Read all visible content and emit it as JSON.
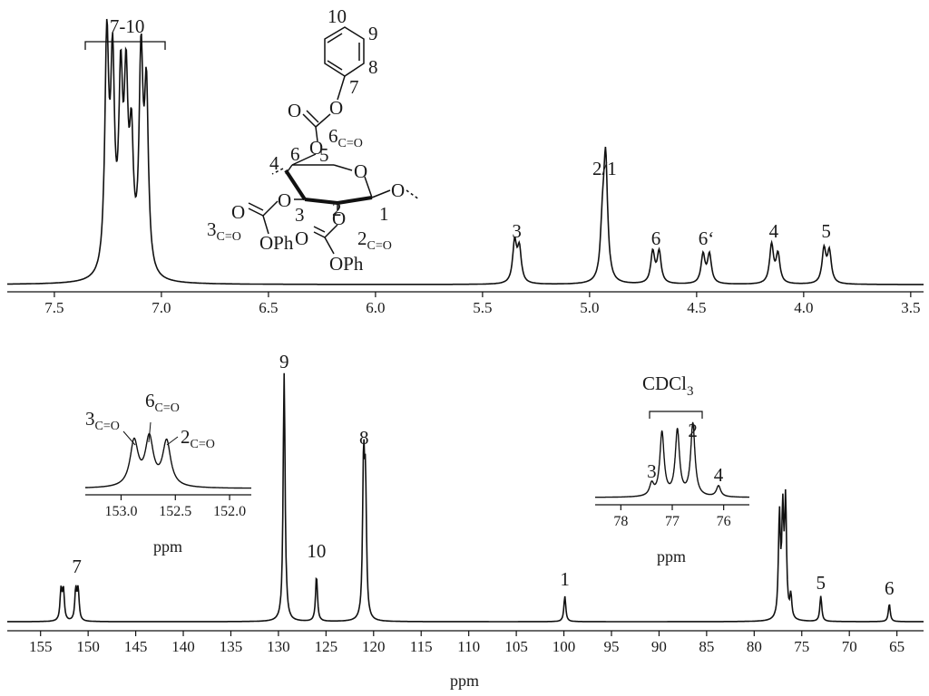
{
  "chart_data": [
    {
      "type": "line",
      "id": "h1-spectrum",
      "title": "",
      "xlabel": "",
      "ylabel": "",
      "x_reversed": true,
      "xlim": [
        7.72,
        3.44
      ],
      "xticks": [
        "7.5",
        "7.0",
        "6.5",
        "6.0",
        "5.5",
        "5.0",
        "4.5",
        "4.0",
        "3.5"
      ],
      "xtick_values": [
        7.5,
        7.0,
        6.5,
        6.0,
        5.5,
        5.0,
        4.5,
        4.0,
        3.5
      ],
      "grid": false,
      "peaks": [
        {
          "ppm": 7.255,
          "height": 0.95
        },
        {
          "ppm": 7.228,
          "height": 0.82
        },
        {
          "ppm": 7.19,
          "height": 0.74
        },
        {
          "ppm": 7.165,
          "height": 0.72
        },
        {
          "ppm": 7.14,
          "height": 0.5
        },
        {
          "ppm": 7.095,
          "height": 0.87
        },
        {
          "ppm": 7.07,
          "height": 0.73
        },
        {
          "ppm": 5.35,
          "height": 0.17
        },
        {
          "ppm": 5.328,
          "height": 0.14
        },
        {
          "ppm": 4.925,
          "height": 0.5
        },
        {
          "ppm": 4.94,
          "height": 0.2
        },
        {
          "ppm": 4.705,
          "height": 0.13
        },
        {
          "ppm": 4.675,
          "height": 0.13
        },
        {
          "ppm": 4.47,
          "height": 0.12
        },
        {
          "ppm": 4.44,
          "height": 0.12
        },
        {
          "ppm": 4.15,
          "height": 0.16
        },
        {
          "ppm": 4.12,
          "height": 0.12
        },
        {
          "ppm": 3.905,
          "height": 0.14
        },
        {
          "ppm": 3.88,
          "height": 0.13
        }
      ],
      "labels": [
        {
          "text": "7-10",
          "ppm": 7.16
        },
        {
          "text": "3",
          "ppm": 5.34
        },
        {
          "text": "2/1",
          "ppm": 4.93
        },
        {
          "text": "6",
          "ppm": 4.69
        },
        {
          "text": "6‘",
          "ppm": 4.455
        },
        {
          "text": "4",
          "ppm": 4.14
        },
        {
          "text": "5",
          "ppm": 3.895
        }
      ]
    },
    {
      "type": "line",
      "id": "c13-spectrum",
      "title": "",
      "xlabel": "ppm",
      "ylabel": "",
      "x_reversed": true,
      "xlim": [
        158.5,
        62.2
      ],
      "xticks": [
        "155",
        "150",
        "145",
        "140",
        "135",
        "130",
        "125",
        "120",
        "115",
        "110",
        "105",
        "100",
        "95",
        "90",
        "85",
        "80",
        "75",
        "70",
        "65"
      ],
      "xtick_values": [
        155,
        150,
        145,
        140,
        135,
        130,
        125,
        120,
        115,
        110,
        105,
        100,
        95,
        90,
        85,
        80,
        75,
        70,
        65
      ],
      "grid": false,
      "peaks": [
        {
          "ppm": 152.85,
          "height": 0.12
        },
        {
          "ppm": 152.6,
          "height": 0.12
        },
        {
          "ppm": 151.3,
          "height": 0.12
        },
        {
          "ppm": 151.05,
          "height": 0.12
        },
        {
          "ppm": 129.4,
          "height": 0.98
        },
        {
          "ppm": 126.0,
          "height": 0.18
        },
        {
          "ppm": 121.05,
          "height": 0.6
        },
        {
          "ppm": 120.85,
          "height": 0.49
        },
        {
          "ppm": 99.9,
          "height": 0.1
        },
        {
          "ppm": 77.35,
          "height": 0.4
        },
        {
          "ppm": 77.0,
          "height": 0.4
        },
        {
          "ppm": 76.7,
          "height": 0.45
        },
        {
          "ppm": 76.15,
          "height": 0.09
        },
        {
          "ppm": 73.0,
          "height": 0.1
        },
        {
          "ppm": 65.8,
          "height": 0.07
        }
      ],
      "labels": [
        {
          "text": "7",
          "ppm": 151.2
        },
        {
          "text": "9",
          "ppm": 129.4
        },
        {
          "text": "10",
          "ppm": 126.0
        },
        {
          "text": "8",
          "ppm": 121.0
        },
        {
          "text": "1",
          "ppm": 99.9
        },
        {
          "text": "5",
          "ppm": 73.0
        },
        {
          "text": "6",
          "ppm": 65.8
        }
      ]
    },
    {
      "type": "line",
      "id": "carbonyl-inset",
      "xlabel": "ppm",
      "x_reversed": true,
      "xlim": [
        153.33,
        151.8
      ],
      "xticks": [
        "153.0",
        "152.5",
        "152.0"
      ],
      "xtick_values": [
        153.0,
        152.5,
        152.0
      ],
      "peaks": [
        {
          "ppm": 152.88,
          "height": 0.55
        },
        {
          "ppm": 152.74,
          "height": 0.58
        },
        {
          "ppm": 152.58,
          "height": 0.55
        }
      ],
      "labels": [
        {
          "text": "3",
          "sub": "C=O"
        },
        {
          "text": "6",
          "sub": "C=O"
        },
        {
          "text": "2",
          "sub": "C=O"
        }
      ]
    },
    {
      "type": "line",
      "id": "cdcl3-inset",
      "xlabel": "ppm",
      "x_reversed": true,
      "xlim": [
        78.5,
        75.5
      ],
      "xticks": [
        "78",
        "77",
        "76"
      ],
      "xtick_values": [
        78,
        77,
        76
      ],
      "peaks": [
        {
          "ppm": 77.4,
          "height": 0.13
        },
        {
          "ppm": 77.2,
          "height": 0.7
        },
        {
          "ppm": 76.9,
          "height": 0.72
        },
        {
          "ppm": 76.6,
          "height": 0.8
        },
        {
          "ppm": 76.1,
          "height": 0.12
        }
      ],
      "bracket_label": {
        "text": "CDCl",
        "sub": "3"
      },
      "labels": [
        {
          "text": "3",
          "ppm": 77.4
        },
        {
          "text": "2",
          "ppm": 76.6
        },
        {
          "text": "4",
          "ppm": 76.1
        }
      ]
    }
  ],
  "structure": {
    "atom_numbers": [
      "10",
      "9",
      "8",
      "7",
      "6",
      "5",
      "4",
      "3",
      "2",
      "1"
    ],
    "carbonyl_label": {
      "text": "6",
      "sub": "C=O"
    },
    "carbonyl_label_3": {
      "text": "3",
      "sub": "C=O"
    },
    "carbonyl_label_2": {
      "text": "2",
      "sub": "C=O"
    },
    "oxygen": "O",
    "phenoxy_left": "OPh",
    "phenoxy_right": "OPh"
  }
}
